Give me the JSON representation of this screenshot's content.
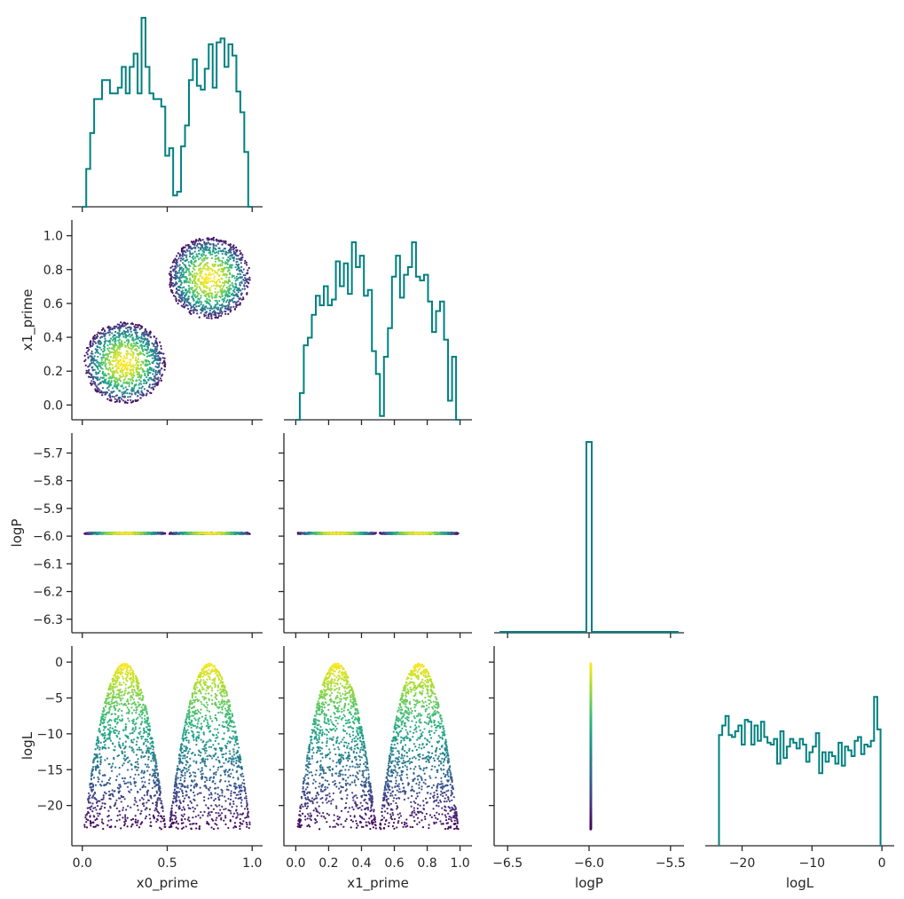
{
  "chart_data": {
    "type": "corner",
    "colormap": "viridis",
    "hist_color": "#008080",
    "variables": [
      {
        "name": "x0_prime",
        "range": [
          -0.03,
          1.03
        ],
        "ticks": [
          0.0,
          0.5,
          1.0
        ],
        "tick_labels": [
          "0.0",
          "0.5",
          "1.0"
        ]
      },
      {
        "name": "x1_prime",
        "range": [
          -0.04,
          1.04
        ],
        "ticks": [
          0.0,
          0.2,
          0.4,
          0.6,
          0.8,
          1.0
        ],
        "tick_labels": [
          "0.0",
          "0.2",
          "0.4",
          "0.6",
          "0.8",
          "1.0"
        ]
      },
      {
        "name": "logP",
        "range": [
          -6.55,
          -5.45
        ],
        "ticks": [
          -6.5,
          -6.0,
          -5.5
        ],
        "tick_labels": [
          "−6.5",
          "−6.0",
          "−5.5"
        ]
      },
      {
        "name": "logL",
        "range": [
          -24.5,
          1.0
        ],
        "ticks": [
          -20,
          -15,
          -10,
          -5,
          0
        ],
        "tick_labels": [
          "−20",
          "−15",
          "−10",
          "−5",
          "0"
        ]
      }
    ],
    "logP_axis": {
      "range": [
        -6.32,
        -5.66
      ],
      "ticks": [
        -6.3,
        -6.2,
        -6.1,
        -6.0,
        -5.9,
        -5.8,
        -5.7
      ],
      "tick_labels": [
        "−6.3",
        "−6.2",
        "−6.1",
        "−6.0",
        "−5.9",
        "−5.8",
        "−5.7"
      ]
    },
    "logL_col_ticks": [
      -20,
      -10,
      0
    ],
    "logL_col_tick_labels": [
      "−20",
      "−10",
      "0"
    ],
    "samples": {
      "modes": [
        {
          "center": [
            0.25,
            0.25
          ],
          "radius": 0.24
        },
        {
          "center": [
            0.75,
            0.75
          ],
          "radius": 0.24
        }
      ],
      "logP_value": -5.99,
      "logL_min": -23.3,
      "logL_max": -0.2,
      "count": 2400
    },
    "histograms": {
      "x0_prime": [
        0,
        0.2,
        0.39,
        0.57,
        0.57,
        0.67,
        0.67,
        0.6,
        0.6,
        0.63,
        0.74,
        0.6,
        0.74,
        0.81,
        0.6,
        1.0,
        0.74,
        0.6,
        0.57,
        0.57,
        0.53,
        0.27,
        0.31,
        0.06,
        0.08,
        0.32,
        0.43,
        0.67,
        0.78,
        0.64,
        0.62,
        0.73,
        0.86,
        0.63,
        0.87,
        0.89,
        0.74,
        0.86,
        0.8,
        0.61,
        0.5,
        0.29,
        0.0
      ],
      "x1_prime": [
        0,
        0.14,
        0.39,
        0.43,
        0.55,
        0.65,
        0.6,
        0.7,
        0.6,
        0.63,
        0.83,
        0.7,
        0.82,
        0.66,
        0.93,
        0.8,
        0.86,
        0.65,
        0.68,
        0.36,
        0.24,
        0.02,
        0.33,
        0.48,
        0.75,
        0.86,
        0.64,
        0.76,
        0.8,
        0.93,
        0.75,
        0.73,
        0.76,
        0.62,
        0.46,
        0.57,
        0.62,
        0.42,
        0.1,
        0.33,
        0.0
      ],
      "logP": [
        1.0
      ],
      "logL": [
        0.58,
        0.63,
        0.68,
        0.58,
        0.57,
        0.6,
        0.63,
        0.53,
        0.66,
        0.65,
        0.53,
        0.63,
        0.55,
        0.65,
        0.57,
        0.54,
        0.53,
        0.56,
        0.43,
        0.6,
        0.46,
        0.52,
        0.56,
        0.54,
        0.51,
        0.56,
        0.53,
        0.44,
        0.49,
        0.52,
        0.59,
        0.38,
        0.49,
        0.44,
        0.49,
        0.47,
        0.43,
        0.54,
        0.42,
        0.52,
        0.5,
        0.47,
        0.55,
        0.57,
        0.48,
        0.53,
        0.52,
        0.55,
        0.78,
        0.61
      ]
    }
  }
}
